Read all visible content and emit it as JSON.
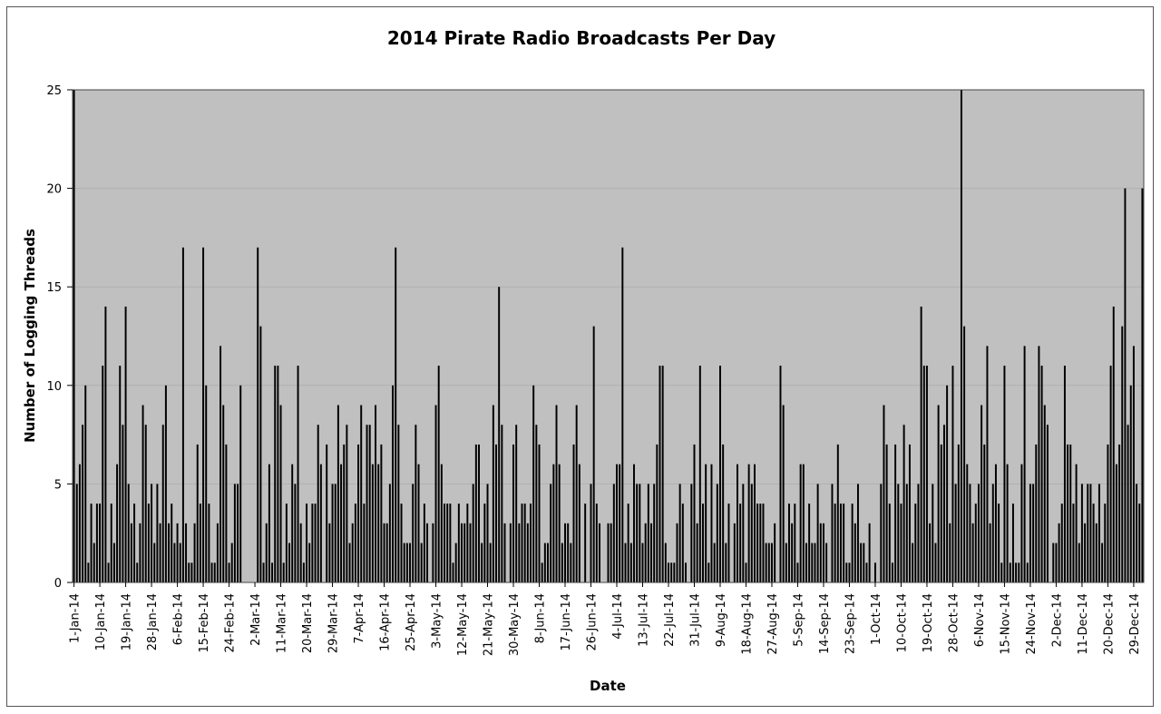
{
  "chart_data": {
    "type": "bar",
    "title": "2014 Pirate Radio Broadcasts Per Day",
    "xlabel": "Date",
    "ylabel": "Number of Logging Threads",
    "ylim": [
      0,
      25
    ],
    "y_ticks": [
      0,
      5,
      10,
      15,
      20,
      25
    ],
    "x_tick_labels": [
      "1-Jan-14",
      "10-Jan-14",
      "19-Jan-14",
      "28-Jan-14",
      "6-Feb-14",
      "15-Feb-14",
      "24-Feb-14",
      "2-Mar-14",
      "11-Mar-14",
      "20-Mar-14",
      "29-Mar-14",
      "7-Apr-14",
      "16-Apr-14",
      "25-Apr-14",
      "3-May-14",
      "12-May-14",
      "21-May-14",
      "30-May-14",
      "8-Jun-14",
      "17-Jun-14",
      "26-Jun-14",
      "4-Jul-14",
      "13-Jul-14",
      "22-Jul-14",
      "31-Jul-14",
      "9-Aug-14",
      "18-Aug-14",
      "27-Aug-14",
      "5-Sep-14",
      "14-Sep-14",
      "23-Sep-14",
      "1-Oct-14",
      "10-Oct-14",
      "19-Oct-14",
      "28-Oct-14",
      "6-Nov-14",
      "15-Nov-14",
      "24-Nov-14",
      "2-Dec-14",
      "11-Dec-14",
      "20-Dec-14",
      "29-Dec-14"
    ],
    "grid": true,
    "plot_background": "#c0c0c0",
    "bar_color": "#000000",
    "values": [
      25,
      5,
      6,
      8,
      10,
      1,
      4,
      2,
      4,
      4,
      11,
      14,
      1,
      4,
      2,
      6,
      11,
      8,
      14,
      5,
      3,
      4,
      1,
      3,
      9,
      8,
      4,
      5,
      2,
      5,
      3,
      8,
      10,
      3,
      4,
      2,
      3,
      2,
      17,
      3,
      1,
      1,
      3,
      7,
      4,
      17,
      10,
      4,
      1,
      1,
      3,
      12,
      9,
      7,
      1,
      2,
      5,
      5,
      10,
      0,
      0,
      0,
      0,
      0,
      17,
      13,
      1,
      3,
      6,
      1,
      11,
      11,
      9,
      1,
      4,
      2,
      6,
      5,
      11,
      3,
      1,
      4,
      2,
      4,
      4,
      8,
      6,
      0,
      7,
      3,
      5,
      5,
      9,
      6,
      7,
      8,
      2,
      3,
      4,
      7,
      9,
      4,
      8,
      8,
      6,
      9,
      6,
      7,
      3,
      3,
      5,
      10,
      17,
      8,
      4,
      2,
      2,
      2,
      5,
      8,
      6,
      2,
      4,
      3,
      0,
      3,
      9,
      11,
      6,
      4,
      4,
      4,
      1,
      2,
      4,
      3,
      3,
      4,
      3,
      5,
      7,
      7,
      2,
      4,
      5,
      2,
      9,
      7,
      15,
      8,
      3,
      0,
      3,
      7,
      8,
      3,
      4,
      4,
      3,
      4,
      10,
      8,
      7,
      1,
      2,
      2,
      5,
      6,
      9,
      6,
      2,
      3,
      3,
      2,
      7,
      9,
      6,
      0,
      4,
      0,
      5,
      13,
      4,
      3,
      0,
      0,
      3,
      3,
      5,
      6,
      6,
      17,
      2,
      4,
      2,
      6,
      5,
      5,
      2,
      3,
      5,
      3,
      5,
      7,
      11,
      11,
      2,
      1,
      1,
      1,
      3,
      5,
      4,
      1,
      0,
      5,
      7,
      3,
      11,
      4,
      6,
      1,
      6,
      2,
      5,
      11,
      7,
      2,
      4,
      0,
      3,
      6,
      4,
      5,
      1,
      6,
      5,
      6,
      4,
      4,
      4,
      2,
      2,
      2,
      3,
      0,
      11,
      9,
      2,
      4,
      3,
      4,
      1,
      6,
      6,
      2,
      4,
      2,
      2,
      5,
      3,
      3,
      2,
      0,
      5,
      4,
      7,
      4,
      4,
      1,
      1,
      4,
      3,
      5,
      2,
      2,
      1,
      3,
      0,
      1,
      0,
      5,
      9,
      7,
      4,
      1,
      7,
      5,
      4,
      8,
      5,
      7,
      2,
      4,
      5,
      14,
      11,
      11,
      3,
      5,
      2,
      9,
      7,
      8,
      10,
      3,
      11,
      5,
      7,
      25,
      13,
      6,
      5,
      3,
      4,
      5,
      9,
      7,
      12,
      3,
      5,
      6,
      4,
      1,
      11,
      6,
      1,
      4,
      1,
      1,
      6,
      12,
      1,
      5,
      5,
      7,
      12,
      11,
      9,
      8,
      0,
      2,
      2,
      3,
      4,
      11,
      7,
      7,
      4,
      6,
      2,
      5,
      3,
      5,
      5,
      4,
      3,
      5,
      2,
      4,
      7,
      11,
      14,
      6,
      7,
      13,
      20,
      8,
      10,
      12,
      5,
      4,
      20
    ]
  }
}
